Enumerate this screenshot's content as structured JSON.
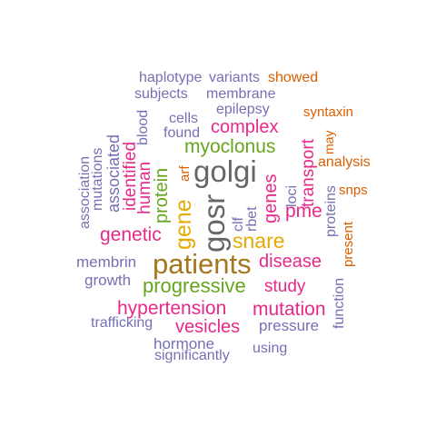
{
  "colors": {
    "purple": "#7570b3",
    "orange": "#d95f02",
    "magenta": "#e7298a",
    "green": "#66a61e",
    "gold": "#e6ab02",
    "brown": "#a6761d",
    "gray": "#666666"
  },
  "words": [
    {
      "id": "haplotype",
      "text": "haplotype",
      "color": "purple"
    },
    {
      "id": "variants",
      "text": "variants",
      "color": "purple"
    },
    {
      "id": "showed",
      "text": "showed",
      "color": "orange"
    },
    {
      "id": "subjects",
      "text": "subjects",
      "color": "purple"
    },
    {
      "id": "membrane",
      "text": "membrane",
      "color": "purple"
    },
    {
      "id": "epilepsy",
      "text": "epilepsy",
      "color": "purple"
    },
    {
      "id": "blood",
      "text": "blood",
      "color": "purple"
    },
    {
      "id": "syntaxin",
      "text": "syntaxin",
      "color": "orange"
    },
    {
      "id": "cells",
      "text": "cells",
      "color": "purple"
    },
    {
      "id": "complex",
      "text": "complex",
      "color": "magenta"
    },
    {
      "id": "found",
      "text": "found",
      "color": "purple"
    },
    {
      "id": "may",
      "text": "may",
      "color": "orange"
    },
    {
      "id": "myoclonus",
      "text": "myoclonus",
      "color": "green"
    },
    {
      "id": "transport",
      "text": "transport",
      "color": "magenta"
    },
    {
      "id": "analysis",
      "text": "analysis",
      "color": "orange"
    },
    {
      "id": "mutations",
      "text": "mutations",
      "color": "purple"
    },
    {
      "id": "association",
      "text": "association",
      "color": "purple"
    },
    {
      "id": "associated",
      "text": "associated",
      "color": "purple"
    },
    {
      "id": "identified",
      "text": "identified",
      "color": "magenta"
    },
    {
      "id": "human",
      "text": "human",
      "color": "magenta"
    },
    {
      "id": "protein",
      "text": "protein",
      "color": "green"
    },
    {
      "id": "arf",
      "text": "arf",
      "color": "orange"
    },
    {
      "id": "golgi",
      "text": "golgi",
      "color": "gray"
    },
    {
      "id": "snps",
      "text": "snps",
      "color": "orange"
    },
    {
      "id": "proteins",
      "text": "proteins",
      "color": "purple"
    },
    {
      "id": "genes",
      "text": "genes",
      "color": "magenta"
    },
    {
      "id": "loci",
      "text": "loci",
      "color": "purple"
    },
    {
      "id": "rbet",
      "text": "rbet",
      "color": "purple"
    },
    {
      "id": "clf",
      "text": "clf",
      "color": "purple"
    },
    {
      "id": "gene",
      "text": "gene",
      "color": "gold"
    },
    {
      "id": "gosr",
      "text": "gosr",
      "color": "gray"
    },
    {
      "id": "pme",
      "text": "pme",
      "color": "magenta"
    },
    {
      "id": "present",
      "text": "present",
      "color": "orange"
    },
    {
      "id": "genetic",
      "text": "genetic",
      "color": "magenta"
    },
    {
      "id": "snare",
      "text": "snare",
      "color": "gold"
    },
    {
      "id": "membrin",
      "text": "membrin",
      "color": "purple"
    },
    {
      "id": "patients",
      "text": "patients",
      "color": "brown"
    },
    {
      "id": "disease",
      "text": "disease",
      "color": "magenta"
    },
    {
      "id": "growth",
      "text": "growth",
      "color": "purple"
    },
    {
      "id": "progressive",
      "text": "progressive",
      "color": "green"
    },
    {
      "id": "study",
      "text": "study",
      "color": "magenta"
    },
    {
      "id": "function",
      "text": "function",
      "color": "purple"
    },
    {
      "id": "hypertension",
      "text": "hypertension",
      "color": "magenta"
    },
    {
      "id": "mutation",
      "text": "mutation",
      "color": "magenta"
    },
    {
      "id": "trafficking",
      "text": "trafficking",
      "color": "purple"
    },
    {
      "id": "vesicles",
      "text": "vesicles",
      "color": "magenta"
    },
    {
      "id": "pressure",
      "text": "pressure",
      "color": "purple"
    },
    {
      "id": "hormone",
      "text": "hormone",
      "color": "purple"
    },
    {
      "id": "using",
      "text": "using",
      "color": "purple"
    },
    {
      "id": "significantly",
      "text": "significantly",
      "color": "purple"
    }
  ]
}
